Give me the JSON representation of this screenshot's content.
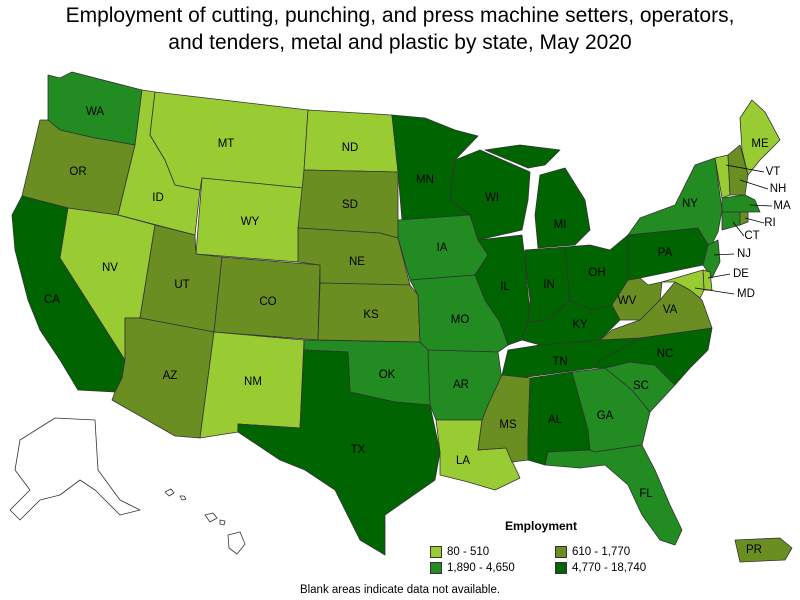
{
  "title_line1": "Employment of cutting, punching, and press machine setters, operators,",
  "title_line2": "and tenders, metal and plastic by state, May 2020",
  "legend": {
    "title": "Employment",
    "items": [
      {
        "label": "80 - 510",
        "color": "#99cc33"
      },
      {
        "label": "610 - 1,770",
        "color": "#6b8e23"
      },
      {
        "label": "1,890 - 4,650",
        "color": "#228b22"
      },
      {
        "label": "4,770 - 18,740",
        "color": "#006400"
      }
    ]
  },
  "note": "Blank areas indicate data not available.",
  "states": {
    "WA": {
      "label": "WA",
      "class": 2
    },
    "OR": {
      "label": "OR",
      "class": 1
    },
    "CA": {
      "label": "CA",
      "class": 3
    },
    "ID": {
      "label": "ID",
      "class": 0
    },
    "NV": {
      "label": "NV",
      "class": 0
    },
    "MT": {
      "label": "MT",
      "class": 0
    },
    "WY": {
      "label": "WY",
      "class": 0
    },
    "UT": {
      "label": "UT",
      "class": 1
    },
    "AZ": {
      "label": "AZ",
      "class": 1
    },
    "CO": {
      "label": "CO",
      "class": 1
    },
    "NM": {
      "label": "NM",
      "class": 0
    },
    "ND": {
      "label": "ND",
      "class": 0
    },
    "SD": {
      "label": "SD",
      "class": 1
    },
    "NE": {
      "label": "NE",
      "class": 1
    },
    "KS": {
      "label": "KS",
      "class": 1
    },
    "OK": {
      "label": "OK",
      "class": 2
    },
    "TX": {
      "label": "TX",
      "class": 3
    },
    "MN": {
      "label": "MN",
      "class": 3
    },
    "IA": {
      "label": "IA",
      "class": 2
    },
    "MO": {
      "label": "MO",
      "class": 2
    },
    "AR": {
      "label": "AR",
      "class": 2
    },
    "LA": {
      "label": "LA",
      "class": 0
    },
    "WI": {
      "label": "WI",
      "class": 3
    },
    "IL": {
      "label": "IL",
      "class": 3
    },
    "MI": {
      "label": "MI",
      "class": 3
    },
    "IN": {
      "label": "IN",
      "class": 3
    },
    "OH": {
      "label": "OH",
      "class": 3
    },
    "KY": {
      "label": "KY",
      "class": 3
    },
    "TN": {
      "label": "TN",
      "class": 3
    },
    "MS": {
      "label": "MS",
      "class": 1
    },
    "AL": {
      "label": "AL",
      "class": 3
    },
    "GA": {
      "label": "GA",
      "class": 2
    },
    "FL": {
      "label": "FL",
      "class": 2
    },
    "SC": {
      "label": "SC",
      "class": 2
    },
    "NC": {
      "label": "NC",
      "class": 3
    },
    "VA": {
      "label": "VA",
      "class": 1
    },
    "WV": {
      "label": "WV",
      "class": 1
    },
    "PA": {
      "label": "PA",
      "class": 3
    },
    "NY": {
      "label": "NY",
      "class": 2
    },
    "ME": {
      "label": "ME",
      "class": 0
    },
    "VT": {
      "label": "VT",
      "class": 0
    },
    "NH": {
      "label": "NH",
      "class": 1
    },
    "MA": {
      "label": "MA",
      "class": 2
    },
    "CT": {
      "label": "CT",
      "class": 2
    },
    "RI": {
      "label": "RI",
      "class": 1
    },
    "NJ": {
      "label": "NJ",
      "class": 2
    },
    "DE": {
      "label": "DE",
      "class": 0
    },
    "MD": {
      "label": "MD",
      "class": 0
    },
    "PR": {
      "label": "PR",
      "class": 1
    },
    "AK": {
      "label": "",
      "class": -1
    },
    "HI": {
      "label": "",
      "class": -1
    }
  }
}
